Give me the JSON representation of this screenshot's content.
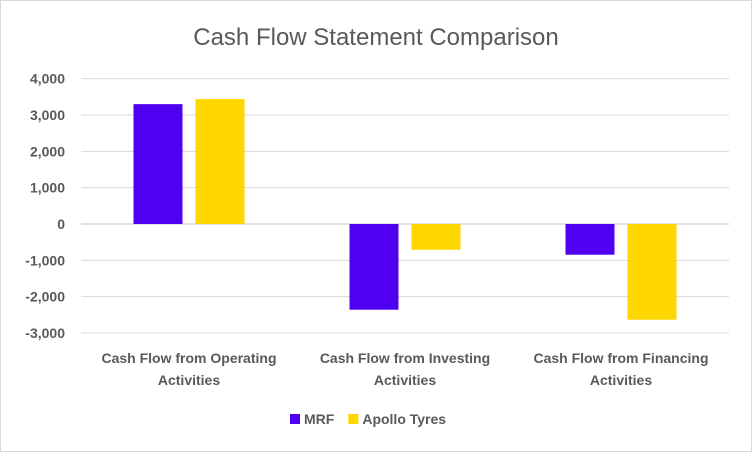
{
  "chart_data": {
    "type": "bar",
    "title": "Cash Flow Statement Comparison",
    "categories": [
      [
        "Cash Flow from Operating",
        "Activities"
      ],
      [
        "Cash Flow from Investing",
        "Activities"
      ],
      [
        "Cash Flow from Financing",
        "Activities"
      ]
    ],
    "series": [
      {
        "name": "MRF",
        "color": "#5000F0",
        "values": [
          3300,
          -2360,
          -845
        ]
      },
      {
        "name": "Apollo Tyres",
        "color": "#FFD700",
        "values": [
          3440,
          -710,
          -2635
        ]
      }
    ],
    "yticks": [
      "4,000",
      "3,000",
      "2,000",
      "1,000",
      "0",
      "-1,000",
      "-2,000",
      "-3,000"
    ],
    "ytick_values": [
      4000,
      3000,
      2000,
      1000,
      0,
      -1000,
      -2000,
      -3000
    ],
    "ylim": [
      -3000,
      4000
    ],
    "grid": true,
    "legend": "bottom"
  }
}
